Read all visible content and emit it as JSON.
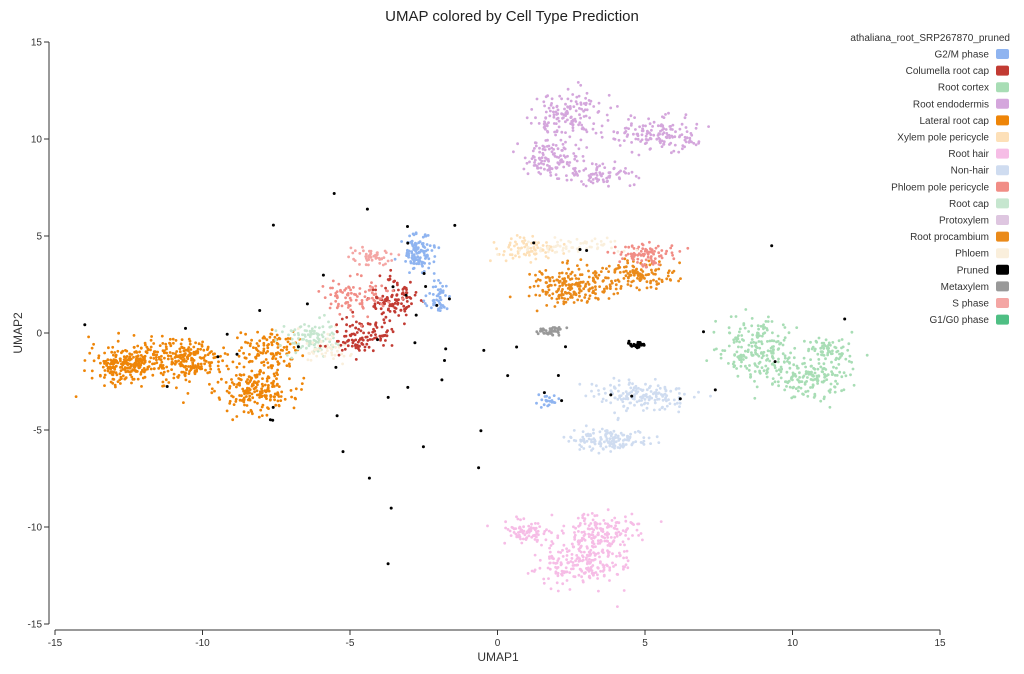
{
  "chart_data": {
    "type": "scatter",
    "title": "UMAP colored by Cell Type Prediction",
    "xlabel": "UMAP1",
    "ylabel": "UMAP2",
    "xlim": [
      -15,
      15
    ],
    "ylim": [
      -15,
      15
    ],
    "xticks": [
      -15,
      -10,
      -5,
      0,
      5,
      10,
      15
    ],
    "yticks": [
      -15,
      -10,
      -5,
      0,
      5,
      10,
      15
    ],
    "grid": false,
    "legend": {
      "title": "athaliana_root_SRP267870_pruned",
      "placement": "top-right",
      "entries": [
        {
          "label": "G2/M phase",
          "color": "#8fb4f0"
        },
        {
          "label": "Columella root cap",
          "color": "#c23b33"
        },
        {
          "label": "Root cortex",
          "color": "#a8ddb5"
        },
        {
          "label": "Root endodermis",
          "color": "#d4a6dc"
        },
        {
          "label": "Lateral root cap",
          "color": "#ee8508"
        },
        {
          "label": "Xylem pole pericycle",
          "color": "#fde0b8"
        },
        {
          "label": "Root hair",
          "color": "#f6bde6"
        },
        {
          "label": "Non-hair",
          "color": "#cfdcf0"
        },
        {
          "label": "Phloem pole pericycle",
          "color": "#f18d86"
        },
        {
          "label": "Root cap",
          "color": "#c6e6cf"
        },
        {
          "label": "Protoxylem",
          "color": "#dec6e0"
        },
        {
          "label": "Root procambium",
          "color": "#ea8a1a"
        },
        {
          "label": "Phloem",
          "color": "#faefdc"
        },
        {
          "label": "Pruned",
          "color": "#000000"
        },
        {
          "label": "Metaxylem",
          "color": "#999999"
        },
        {
          "label": "S phase",
          "color": "#f4a6a4"
        },
        {
          "label": "G1/G0 phase",
          "color": "#4fbf84"
        }
      ]
    },
    "clusters": [
      {
        "series": "Lateral root cap",
        "center": [
          -12.5,
          -1.6
        ],
        "spread": [
          1.1,
          0.8
        ],
        "n": 260
      },
      {
        "series": "Lateral root cap",
        "center": [
          -10.5,
          -1.4
        ],
        "spread": [
          1.1,
          0.9
        ],
        "n": 230
      },
      {
        "series": "Lateral root cap",
        "center": [
          -8.2,
          -2.9
        ],
        "spread": [
          1.0,
          1.0
        ],
        "n": 200
      },
      {
        "series": "Lateral root cap",
        "center": [
          -7.8,
          -0.9
        ],
        "spread": [
          0.8,
          0.9
        ],
        "n": 120
      },
      {
        "series": "Root cap",
        "center": [
          -6.3,
          -0.3
        ],
        "spread": [
          0.9,
          0.7
        ],
        "n": 100
      },
      {
        "series": "Phloem",
        "center": [
          -5.8,
          -0.8
        ],
        "spread": [
          0.8,
          0.7
        ],
        "n": 50
      },
      {
        "series": "Columella root cap",
        "center": [
          -4.6,
          -0.2
        ],
        "spread": [
          0.8,
          0.7
        ],
        "n": 110
      },
      {
        "series": "Columella root cap",
        "center": [
          -3.5,
          1.7
        ],
        "spread": [
          0.6,
          0.9
        ],
        "n": 110
      },
      {
        "series": "Phloem pole pericycle",
        "center": [
          -4.8,
          1.9
        ],
        "spread": [
          0.9,
          0.8
        ],
        "n": 90
      },
      {
        "series": "S phase",
        "center": [
          -4.3,
          4.0
        ],
        "spread": [
          0.6,
          0.4
        ],
        "n": 50
      },
      {
        "series": "G2/M phase",
        "center": [
          -2.7,
          4.1
        ],
        "spread": [
          0.5,
          0.8
        ],
        "n": 120
      },
      {
        "series": "G2/M phase",
        "center": [
          -2.0,
          1.8
        ],
        "spread": [
          0.4,
          0.7
        ],
        "n": 50
      },
      {
        "series": "Root endodermis",
        "center": [
          2.6,
          11.3
        ],
        "spread": [
          1.1,
          1.0
        ],
        "n": 150
      },
      {
        "series": "Root endodermis",
        "center": [
          1.8,
          9.0
        ],
        "spread": [
          0.8,
          0.8
        ],
        "n": 110
      },
      {
        "series": "Root endodermis",
        "center": [
          5.5,
          10.2
        ],
        "spread": [
          1.2,
          0.7
        ],
        "n": 140
      },
      {
        "series": "Root endodermis",
        "center": [
          3.5,
          8.2
        ],
        "spread": [
          1.0,
          0.5
        ],
        "n": 80
      },
      {
        "series": "Xylem pole pericycle",
        "center": [
          1.0,
          4.3
        ],
        "spread": [
          0.9,
          0.5
        ],
        "n": 80
      },
      {
        "series": "Root procambium",
        "center": [
          2.4,
          2.4
        ],
        "spread": [
          1.2,
          0.8
        ],
        "n": 210
      },
      {
        "series": "Root procambium",
        "center": [
          4.8,
          3.0
        ],
        "spread": [
          1.0,
          0.7
        ],
        "n": 120
      },
      {
        "series": "Phloem pole pericycle",
        "center": [
          5.0,
          4.0
        ],
        "spread": [
          0.8,
          0.5
        ],
        "n": 90
      },
      {
        "series": "Phloem",
        "center": [
          2.5,
          4.5
        ],
        "spread": [
          1.4,
          0.4
        ],
        "n": 60
      },
      {
        "series": "Metaxylem",
        "center": [
          1.7,
          0.1
        ],
        "spread": [
          0.4,
          0.2
        ],
        "n": 40
      },
      {
        "series": "Pruned",
        "center": [
          4.7,
          -0.6
        ],
        "spread": [
          0.25,
          0.15
        ],
        "n": 30
      },
      {
        "series": "Root cortex",
        "center": [
          8.8,
          -1.0
        ],
        "spread": [
          1.1,
          1.3
        ],
        "n": 200
      },
      {
        "series": "Root cortex",
        "center": [
          10.6,
          -2.2
        ],
        "spread": [
          1.0,
          1.0
        ],
        "n": 170
      },
      {
        "series": "Root cortex",
        "center": [
          11.3,
          -0.8
        ],
        "spread": [
          0.6,
          0.6
        ],
        "n": 60
      },
      {
        "series": "Non-hair",
        "center": [
          4.8,
          -3.2
        ],
        "spread": [
          1.4,
          0.6
        ],
        "n": 170
      },
      {
        "series": "Non-hair",
        "center": [
          3.8,
          -5.5
        ],
        "spread": [
          1.2,
          0.5
        ],
        "n": 140
      },
      {
        "series": "G2/M phase",
        "center": [
          1.6,
          -3.5
        ],
        "spread": [
          0.4,
          0.3
        ],
        "n": 20
      },
      {
        "series": "Root hair",
        "center": [
          2.8,
          -11.8
        ],
        "spread": [
          1.2,
          1.0
        ],
        "n": 230
      },
      {
        "series": "Root hair",
        "center": [
          3.6,
          -10.2
        ],
        "spread": [
          1.1,
          0.7
        ],
        "n": 150
      },
      {
        "series": "Root hair",
        "center": [
          1.0,
          -10.3
        ],
        "spread": [
          0.7,
          0.5
        ],
        "n": 80
      },
      {
        "series": "Pruned",
        "center": [
          -2.0,
          -0.5
        ],
        "spread": [
          8.0,
          6.0
        ],
        "n": 60
      }
    ]
  }
}
